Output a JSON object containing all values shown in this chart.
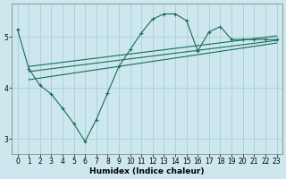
{
  "xlabel": "Humidex (Indice chaleur)",
  "background_color": "#cce8ee",
  "line_color": "#1a6b5a",
  "grid_color": "#aacdd6",
  "x_main": [
    0,
    1,
    2,
    3,
    4,
    5,
    6,
    7,
    8,
    9,
    10,
    11,
    12,
    13,
    14,
    15,
    16,
    17,
    18,
    19,
    20,
    21,
    22,
    23
  ],
  "y_main": [
    5.15,
    4.38,
    4.05,
    3.88,
    3.6,
    3.3,
    2.95,
    3.38,
    3.9,
    4.42,
    4.75,
    5.08,
    5.35,
    5.45,
    5.45,
    5.32,
    4.72,
    5.1,
    5.2,
    4.95,
    4.95,
    4.95,
    4.95,
    4.95
  ],
  "x_line1_start": 1,
  "y_line1_start": 4.42,
  "x_line1_end": 23,
  "y_line1_end": 5.02,
  "x_line2_start": 1,
  "y_line2_start": 4.32,
  "x_line2_end": 23,
  "y_line2_end": 4.93,
  "x_line3_start": 1,
  "y_line3_start": 4.16,
  "x_line3_end": 23,
  "y_line3_end": 4.88,
  "xlim": [
    -0.5,
    23.5
  ],
  "ylim": [
    2.7,
    5.65
  ],
  "xticks": [
    0,
    1,
    2,
    3,
    4,
    5,
    6,
    7,
    8,
    9,
    10,
    11,
    12,
    13,
    14,
    15,
    16,
    17,
    18,
    19,
    20,
    21,
    22,
    23
  ],
  "yticks": [
    3,
    4,
    5
  ],
  "tick_fontsize": 5.5,
  "label_fontsize": 6.5
}
